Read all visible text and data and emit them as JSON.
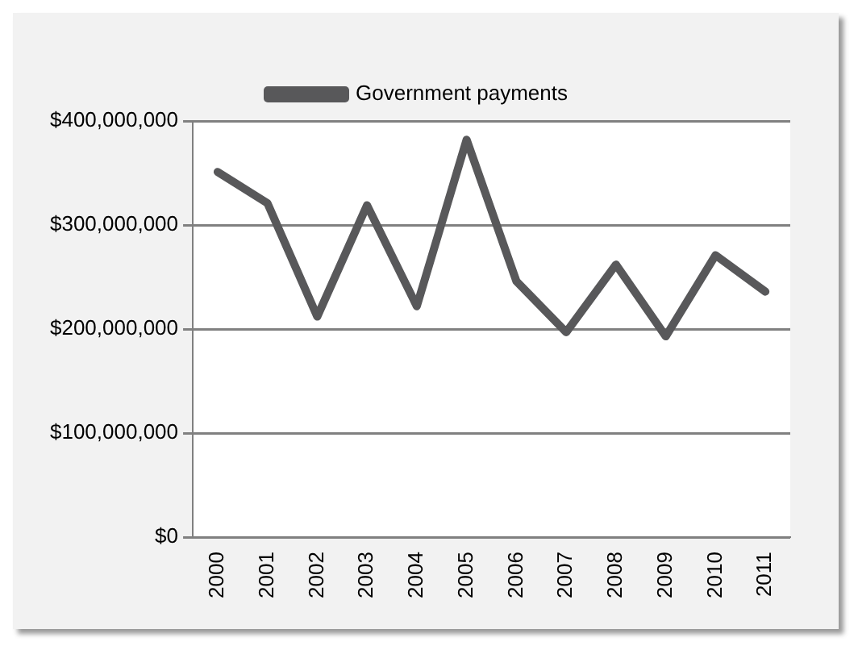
{
  "chart_data": {
    "type": "line",
    "categories": [
      "2000",
      "2001",
      "2002",
      "2003",
      "2004",
      "2005",
      "2006",
      "2007",
      "2008",
      "2009",
      "2010",
      "2011"
    ],
    "series": [
      {
        "name": "Government payments",
        "color": "#58585a",
        "values": [
          351000000,
          321000000,
          212000000,
          319000000,
          222000000,
          382000000,
          246000000,
          197000000,
          262000000,
          193000000,
          271000000,
          236000000
        ]
      }
    ],
    "ylim": [
      0,
      400000000
    ],
    "yticks": [
      {
        "value": 0,
        "label": "$0"
      },
      {
        "value": 100000000,
        "label": "$100,000,000"
      },
      {
        "value": 200000000,
        "label": "$200,000,000"
      },
      {
        "value": 300000000,
        "label": "$300,000,000"
      },
      {
        "value": 400000000,
        "label": "$400,000,000"
      }
    ],
    "grid": "y",
    "legend": "top",
    "marker": "none",
    "line_style": "solid"
  }
}
